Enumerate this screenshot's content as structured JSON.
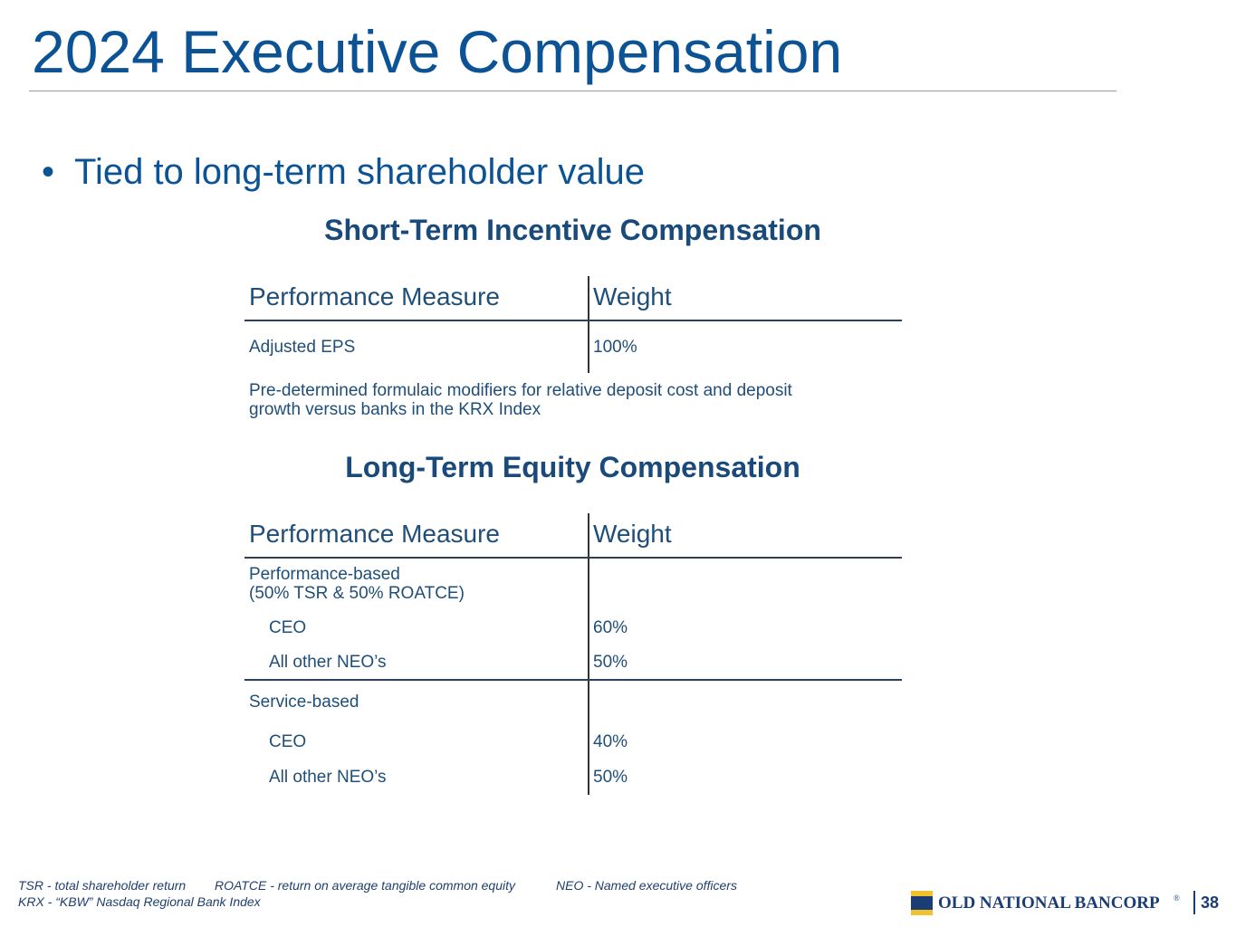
{
  "header": {
    "title": "2024 Executive Compensation"
  },
  "bullet": "Tied to long-term shareholder value",
  "short_term": {
    "heading": "Short-Term Incentive Compensation",
    "columns": [
      "Performance Measure",
      "Weight"
    ],
    "rows": [
      [
        "Adjusted EPS",
        "100%"
      ]
    ],
    "note": [
      "Pre-determined formulaic modifiers for relative deposit cost and deposit",
      "growth versus banks in the KRX Index"
    ]
  },
  "long_term": {
    "heading": "Long-Term Equity Compensation",
    "columns": [
      "Performance Measure",
      "Weight"
    ],
    "groups": [
      {
        "label": [
          "Performance-based",
          "(50% TSR & 50% ROATCE)"
        ],
        "rows": [
          [
            "CEO",
            "60%"
          ],
          [
            "All other NEO’s",
            "50%"
          ]
        ]
      },
      {
        "label": [
          "Service-based"
        ],
        "rows": [
          [
            "CEO",
            "40%"
          ],
          [
            "All other NEO’s",
            "50%"
          ]
        ]
      }
    ]
  },
  "footer": {
    "notes": [
      [
        "TSR - total shareholder return",
        "ROATCE - return on average tangible common equity",
        "NEO - Named executive officers"
      ],
      [
        "KRX - “KBW” Nasdaq Regional Bank Index"
      ]
    ],
    "logo": "OLD NATIONAL BANCORP",
    "logo_mark": "®",
    "page": "38"
  }
}
